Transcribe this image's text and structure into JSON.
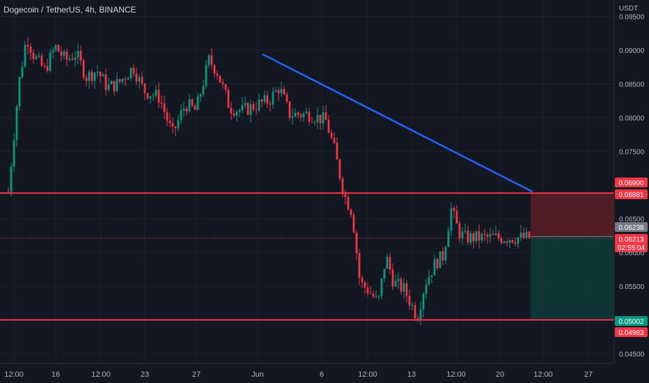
{
  "header": {
    "symbol_title": "Dogecoin / TetherUS, 4h, BINANCE"
  },
  "price_axis": {
    "currency": "USDT",
    "ticks": [
      "0.09500",
      "0.09000",
      "0.08500",
      "0.08000",
      "0.07500",
      "0.06500",
      "0.06000",
      "0.05500",
      "0.04500"
    ],
    "tick_values": [
      0.095,
      0.09,
      0.085,
      0.08,
      0.075,
      0.065,
      0.06,
      0.055,
      0.045
    ]
  },
  "time_axis": {
    "labels": [
      "12:00",
      "16",
      "12:00",
      "23",
      "27",
      "Jun",
      "6",
      "12:00",
      "13",
      "12:00",
      "20",
      "12:00",
      "27"
    ]
  },
  "price_badges": [
    {
      "text": "0.06900",
      "value": 0.069,
      "color": "#f23645"
    },
    {
      "text": "0.06881",
      "value": 0.06881,
      "color": "#f23645"
    },
    {
      "text": "0.06238",
      "value": 0.06238,
      "color": "#787b86"
    },
    {
      "text": "0.06213",
      "value": 0.06213,
      "color": "#f23645"
    },
    {
      "text": "02:55:04",
      "value": 0.0604,
      "color": "#f23645"
    },
    {
      "text": "0.05002",
      "value": 0.05002,
      "color": "#089981"
    },
    {
      "text": "0.04983",
      "value": 0.04983,
      "color": "#f23645"
    }
  ],
  "chart_data": {
    "type": "candlestick",
    "ylim": [
      0.0445,
      0.0965
    ],
    "last_price": 0.06213,
    "horizontal_levels": [
      {
        "value": 0.06881,
        "color": "#f23645"
      },
      {
        "value": 0.05002,
        "color": "#f23645"
      }
    ],
    "trendline": {
      "from_value": 0.0894,
      "to_value": 0.069,
      "color": "#2962ff"
    },
    "position_zones": {
      "entry": 0.06238,
      "stop": 0.06881,
      "target": 0.05002,
      "loss_color": "#5c1d27",
      "profit_color": "#0d3b36"
    },
    "colors": {
      "up": "#089981",
      "down": "#f23645"
    },
    "price_path": [
      {
        "t": 0,
        "p": 0.069
      },
      {
        "t": 0.02,
        "p": 0.085
      },
      {
        "t": 0.035,
        "p": 0.092
      },
      {
        "t": 0.05,
        "p": 0.089
      },
      {
        "t": 0.07,
        "p": 0.087
      },
      {
        "t": 0.09,
        "p": 0.0905
      },
      {
        "t": 0.11,
        "p": 0.0885
      },
      {
        "t": 0.13,
        "p": 0.0895
      },
      {
        "t": 0.15,
        "p": 0.086
      },
      {
        "t": 0.17,
        "p": 0.087
      },
      {
        "t": 0.19,
        "p": 0.0845
      },
      {
        "t": 0.21,
        "p": 0.085
      },
      {
        "t": 0.24,
        "p": 0.0875
      },
      {
        "t": 0.26,
        "p": 0.084
      },
      {
        "t": 0.29,
        "p": 0.083
      },
      {
        "t": 0.315,
        "p": 0.0775
      },
      {
        "t": 0.34,
        "p": 0.082
      },
      {
        "t": 0.36,
        "p": 0.081
      },
      {
        "t": 0.385,
        "p": 0.0885
      },
      {
        "t": 0.4,
        "p": 0.087
      },
      {
        "t": 0.425,
        "p": 0.0815
      },
      {
        "t": 0.45,
        "p": 0.081
      },
      {
        "t": 0.48,
        "p": 0.082
      },
      {
        "t": 0.5,
        "p": 0.0825
      },
      {
        "t": 0.52,
        "p": 0.0845
      },
      {
        "t": 0.54,
        "p": 0.0805
      },
      {
        "t": 0.58,
        "p": 0.0805
      },
      {
        "t": 0.61,
        "p": 0.0795
      },
      {
        "t": 0.625,
        "p": 0.0755
      },
      {
        "t": 0.645,
        "p": 0.0685
      },
      {
        "t": 0.66,
        "p": 0.066
      },
      {
        "t": 0.675,
        "p": 0.0555
      },
      {
        "t": 0.69,
        "p": 0.0545
      },
      {
        "t": 0.71,
        "p": 0.0525
      },
      {
        "t": 0.725,
        "p": 0.0595
      },
      {
        "t": 0.74,
        "p": 0.0555
      },
      {
        "t": 0.76,
        "p": 0.0545
      },
      {
        "t": 0.785,
        "p": 0.0505
      },
      {
        "t": 0.8,
        "p": 0.0555
      },
      {
        "t": 0.82,
        "p": 0.0585
      },
      {
        "t": 0.835,
        "p": 0.0595
      },
      {
        "t": 0.85,
        "p": 0.0665
      },
      {
        "t": 0.865,
        "p": 0.063
      },
      {
        "t": 0.876,
        "p": 0.0622
      }
    ]
  }
}
